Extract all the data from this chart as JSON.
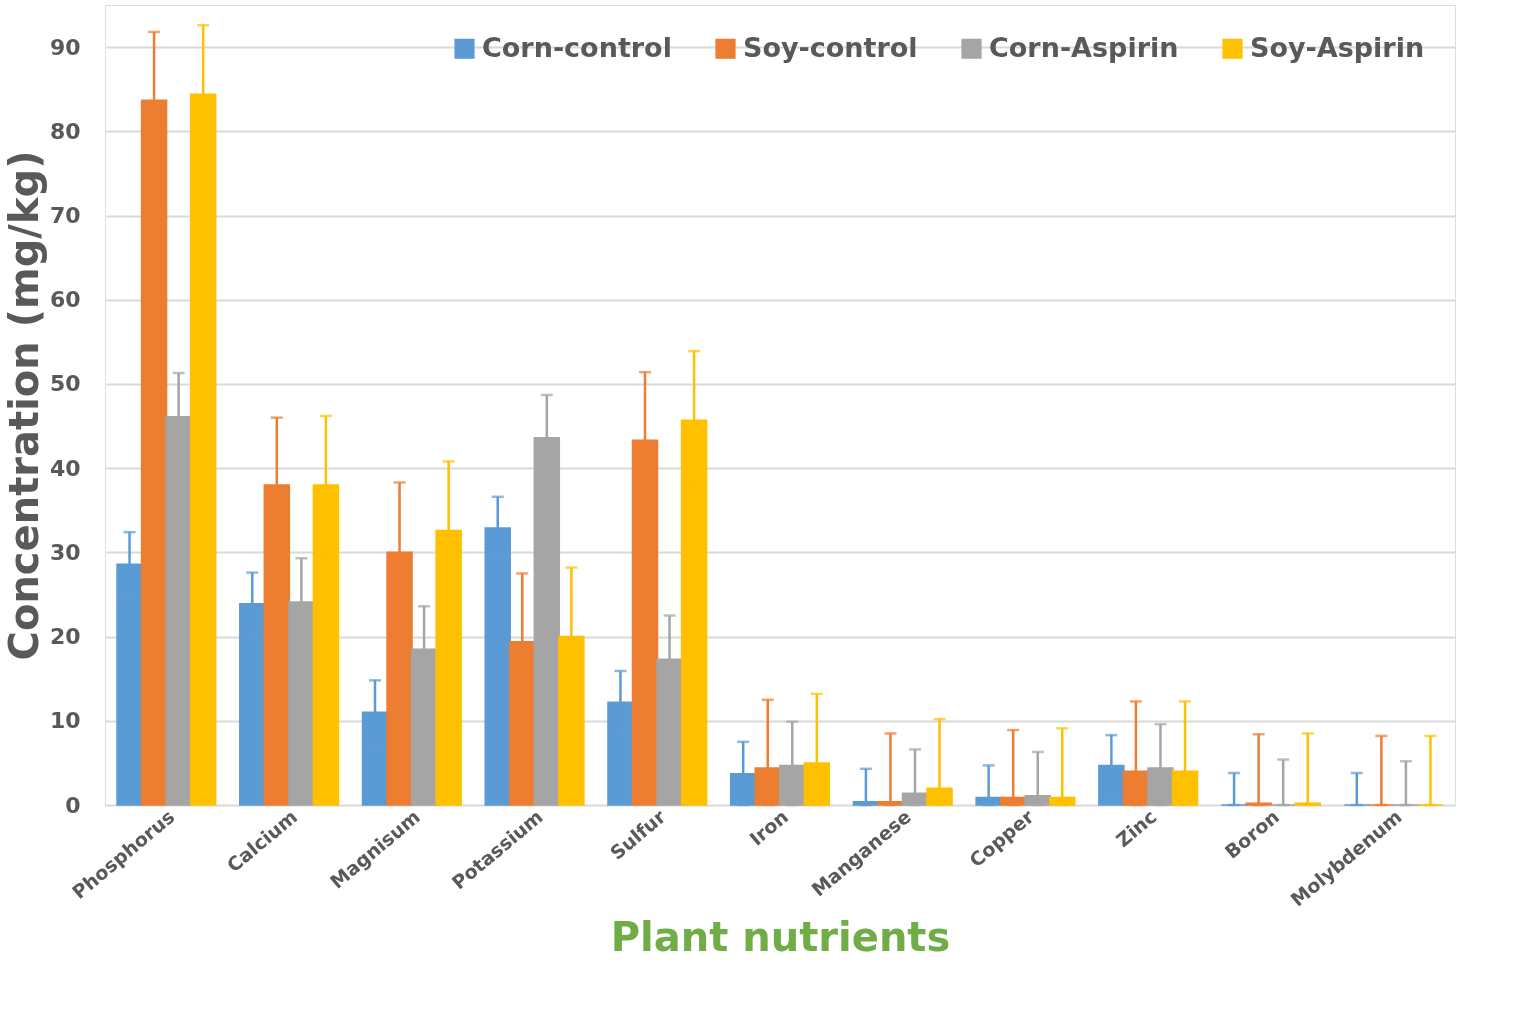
{
  "chart_data": {
    "type": "bar",
    "xlabel": "Plant nutrients",
    "ylabel": "Concentration (mg/kg)",
    "categories": [
      "Phosphorus",
      "Calcium",
      "Magnisum",
      "Potassium",
      "Sulfur",
      "Iron",
      "Manganese",
      "Copper",
      "Zinc",
      "Boron",
      "Molybdenum"
    ],
    "series": [
      {
        "name": "Corn-control",
        "color": "#5b9bd5",
        "values": [
          28.6,
          23.9,
          11.0,
          32.9,
          12.2,
          3.7,
          0.4,
          0.9,
          4.7,
          0,
          0
        ],
        "errors": [
          3.8,
          3.7,
          3.8,
          3.7,
          3.7,
          [
            0,
            7.5
          ],
          [
            0,
            4.3
          ],
          [
            0,
            4.7
          ],
          3.6,
          [
            0,
            3.8
          ],
          [
            0,
            3.8
          ]
        ]
      },
      {
        "name": "Soy-control",
        "color": "#ed7d31",
        "values": [
          83.7,
          38.0,
          30.0,
          19.4,
          43.3,
          4.4,
          0.4,
          0.9,
          4.0,
          0.2,
          0
        ],
        "errors": [
          8.1,
          8.0,
          8.3,
          8.1,
          8.1,
          [
            0,
            12.5
          ],
          [
            0,
            8.5
          ],
          [
            0,
            8.9
          ],
          [
            0,
            12.3
          ],
          [
            0,
            8.4
          ],
          [
            0,
            8.2
          ]
        ]
      },
      {
        "name": "Corn-Aspirin",
        "color": "#a5a5a5",
        "values": [
          46.1,
          24.1,
          18.5,
          43.6,
          17.3,
          4.7,
          1.4,
          1.1,
          4.4,
          0,
          0
        ],
        "errors": [
          5.2,
          5.2,
          5.1,
          5.1,
          5.2,
          [
            0,
            9.9
          ],
          [
            0,
            6.6
          ],
          [
            0,
            6.3
          ],
          [
            0,
            9.6
          ],
          [
            0,
            5.4
          ],
          [
            0,
            5.2
          ]
        ]
      },
      {
        "name": "Soy-Aspirin",
        "color": "#ffc000",
        "values": [
          84.4,
          38.0,
          32.6,
          20.0,
          45.7,
          5.0,
          2.0,
          0.9,
          4.0,
          0.2,
          0
        ],
        "errors": [
          8.2,
          8.2,
          8.2,
          8.2,
          8.2,
          [
            0,
            13.2
          ],
          [
            0,
            10.2
          ],
          [
            0,
            9.1
          ],
          [
            0,
            12.3
          ],
          [
            0,
            8.5
          ],
          [
            0,
            8.2
          ]
        ]
      }
    ],
    "ylim": [
      0,
      95
    ],
    "yticks": [
      0,
      10,
      20,
      30,
      40,
      50,
      60,
      70,
      80,
      90
    ],
    "grid": "y",
    "legend": "top right"
  }
}
